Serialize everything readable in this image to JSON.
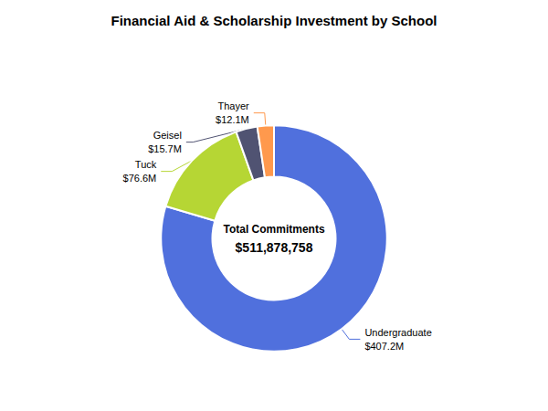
{
  "chart_data": {
    "type": "donut",
    "title": "Financial Aid & Scholarship Investment by School",
    "annotations": [
      "Total Commitments",
      "$511,878,758"
    ],
    "categories": [
      "Undergraduate",
      "Tuck",
      "Geisel",
      "Thayer"
    ],
    "values": [
      407.2,
      76.6,
      15.7,
      12.1
    ],
    "value_labels": [
      "$407.2M",
      "$76.6M",
      "$15.7M",
      "$12.1M"
    ],
    "data_labels": true,
    "legend": false
  }
}
